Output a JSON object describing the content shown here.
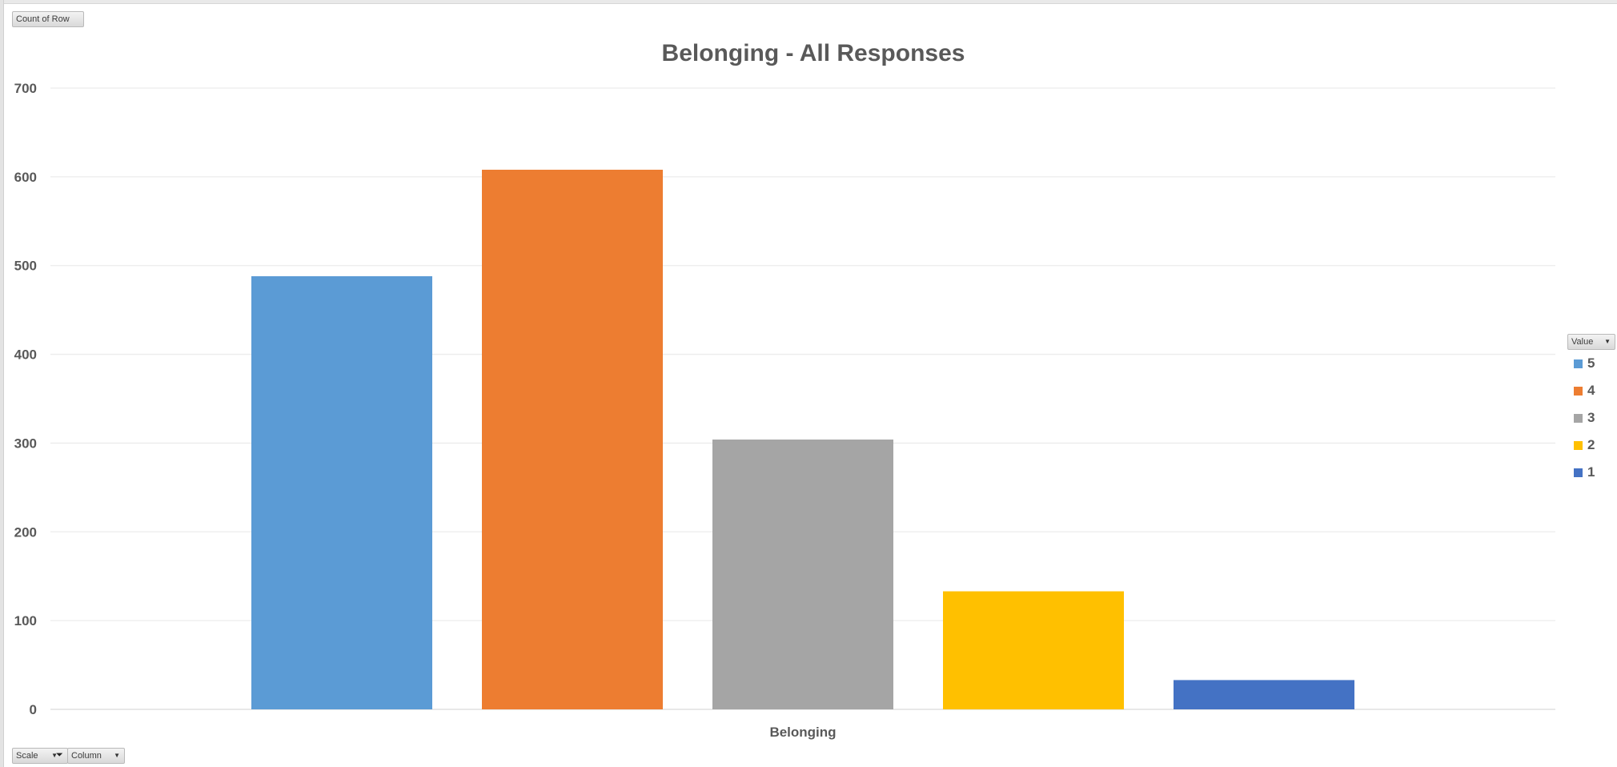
{
  "pivot": {
    "value_field_label": "Count of Row",
    "legend_field_label": "Value",
    "axis_fields": [
      {
        "label": "Scale",
        "filtered": true
      },
      {
        "label": "Column",
        "filtered": false
      }
    ]
  },
  "icons": {
    "dropdown": "chevron-down-icon",
    "filter": "filter-icon"
  },
  "chart_data": {
    "type": "bar",
    "title": "Belonging - All Responses",
    "categories": [
      "Belonging"
    ],
    "xlabel": "",
    "ylabel": "",
    "ylim": [
      0,
      700
    ],
    "yticks": [
      0,
      100,
      200,
      300,
      400,
      500,
      600,
      700
    ],
    "grid": true,
    "legend_position": "right",
    "legend_title": "Value",
    "series": [
      {
        "name": "5",
        "values": [
          488
        ],
        "color": "#5B9BD5"
      },
      {
        "name": "4",
        "values": [
          608
        ],
        "color": "#ED7D31"
      },
      {
        "name": "3",
        "values": [
          304
        ],
        "color": "#A5A5A5"
      },
      {
        "name": "2",
        "values": [
          133
        ],
        "color": "#FFC000"
      },
      {
        "name": "1",
        "values": [
          33
        ],
        "color": "#4472C4"
      }
    ]
  }
}
